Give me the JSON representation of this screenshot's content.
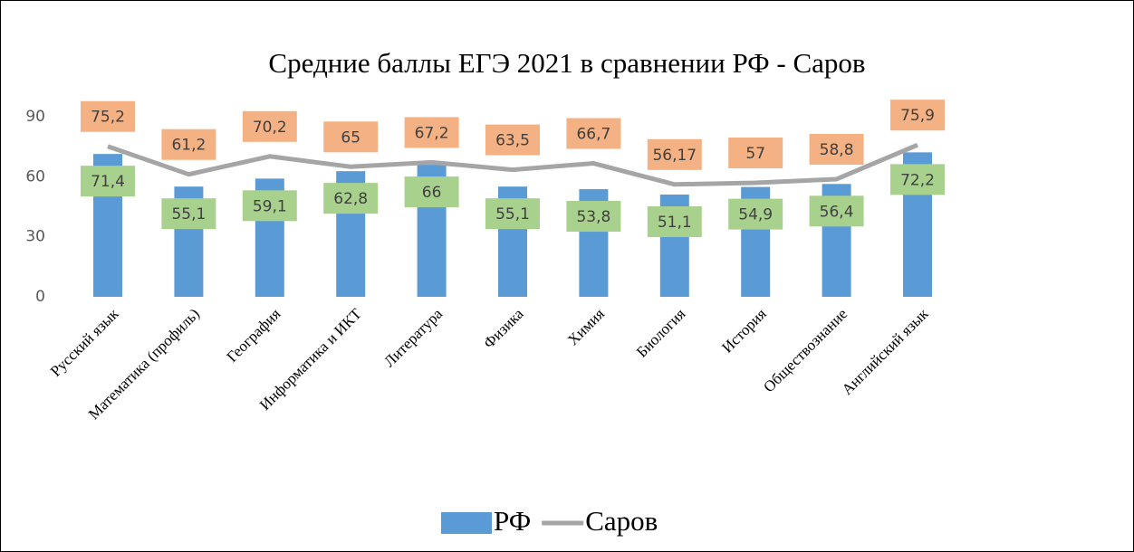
{
  "chart_data": {
    "type": "bar-line",
    "title": "Средние баллы ЕГЭ 2021 в сравнении РФ - Саров",
    "categories": [
      "Русский язык",
      "Математика (профиль)",
      "География",
      "Информатика и ИКТ",
      "Литература",
      "Физика",
      "Химия",
      "Биология",
      "История",
      "Обществознание",
      "Английский язык"
    ],
    "series": [
      {
        "name": "РФ",
        "type": "bar",
        "color": "#5b9bd5",
        "label_color": "#a9d18e",
        "values": [
          71.4,
          55.1,
          59.1,
          62.8,
          66,
          55.1,
          53.8,
          51.1,
          54.9,
          56.4,
          72.2
        ],
        "value_labels": [
          "71,4",
          "55,1",
          "59,1",
          "62,8",
          "66",
          "55,1",
          "53,8",
          "51,1",
          "54,9",
          "56,4",
          "72,2"
        ]
      },
      {
        "name": "Саров",
        "type": "line",
        "color": "#a5a5a5",
        "label_color": "#f4b183",
        "values": [
          75.2,
          61.2,
          70.2,
          65,
          67.2,
          63.5,
          66.7,
          56.17,
          57,
          58.8,
          75.9
        ],
        "value_labels": [
          "75,2",
          "61,2",
          "70,2",
          "65",
          "67,2",
          "63,5",
          "66,7",
          "56,17",
          "57",
          "58,8",
          "75,9"
        ]
      }
    ],
    "ylim": [
      0,
      90
    ],
    "yticks": [
      0,
      30,
      60,
      90
    ],
    "grid": false,
    "legend": "bottom"
  }
}
